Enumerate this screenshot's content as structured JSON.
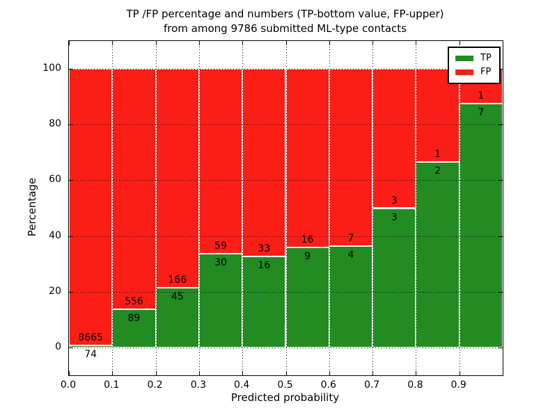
{
  "chart_data": {
    "type": "bar",
    "variant": "stacked-percentage",
    "title_line1": "TP /FP percentage and numbers (TP-bottom value, FP-upper)",
    "title_line2": "from among 9786 submitted ML-type contacts",
    "xlabel": "Predicted probability",
    "ylabel": "Percentage",
    "total_contacts": 9786,
    "xlim": [
      0.0,
      1.0
    ],
    "ylim": [
      -10,
      110
    ],
    "grid": "dotted, drawn over bars",
    "legend_position": "upper right",
    "x_tick_labels": [
      "0.0",
      "0.1",
      "0.2",
      "0.3",
      "0.4",
      "0.5",
      "0.6",
      "0.7",
      "0.8",
      "0.9"
    ],
    "y_tick_labels": [
      "0",
      "20",
      "40",
      "60",
      "80",
      "100"
    ],
    "y_tick_values": [
      0,
      20,
      40,
      60,
      80,
      100
    ],
    "bin_starts": [
      0.0,
      0.1,
      0.2,
      0.3,
      0.4,
      0.5,
      0.6,
      0.7,
      0.8,
      0.9
    ],
    "bar_width": 0.1,
    "series": [
      {
        "name": "TP",
        "color": "#228b22",
        "counts": [
          74,
          89,
          45,
          30,
          16,
          9,
          4,
          3,
          2,
          7
        ]
      },
      {
        "name": "FP",
        "color": "#fb1e17",
        "counts": [
          8665,
          556,
          166,
          59,
          33,
          16,
          7,
          3,
          1,
          1
        ]
      }
    ],
    "tp_percent_by_bin": [
      0.85,
      13.8,
      21.33,
      33.71,
      32.65,
      36.0,
      36.36,
      50.0,
      66.67,
      87.5
    ],
    "legend": [
      {
        "label": "TP",
        "color": "#228b22"
      },
      {
        "label": "FP",
        "color": "#fb1e17"
      }
    ]
  }
}
